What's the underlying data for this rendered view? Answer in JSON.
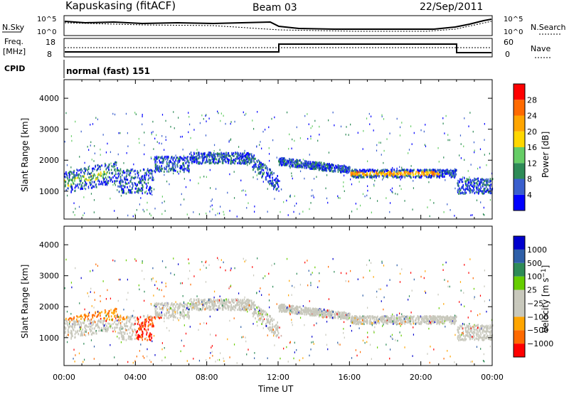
{
  "header": {
    "station": "Kapuskasing (fitACF)",
    "beam": "Beam 03",
    "date": "22/Sep/2011"
  },
  "noise_panel": {
    "left_label": "N.Sky",
    "right_label": "N.Search",
    "ticks_left": [
      "10^5",
      "10^0"
    ],
    "ticks_right": [
      "10^5",
      "10^0"
    ]
  },
  "freq_panel": {
    "left_label_1": "Freq.",
    "left_label_2": "[MHz]",
    "right_label": "Nave",
    "ticks_left": [
      "18",
      "8"
    ],
    "ticks_right": [
      "60",
      "0"
    ]
  },
  "cpid": {
    "label": "CPID",
    "value": "normal (fast) 151"
  },
  "colors": {
    "power_scale": [
      "#0000ff",
      "#3a5fcd",
      "#2e8b57",
      "#66cd66",
      "#ffd700",
      "#ffa500",
      "#ff6a00",
      "#ff0000"
    ],
    "velocity_scale": [
      "#0000cd",
      "#2e5fa8",
      "#2e8b57",
      "#66cd00",
      "#c8c8bc",
      "#c8c8bc",
      "#ffa500",
      "#ff6a00",
      "#ff0000"
    ]
  },
  "chart_data": [
    {
      "type": "heatmap",
      "title": "",
      "quantity": "Power",
      "xlabel": "",
      "ylabel": "Slant Range [km]",
      "yticks": [
        "1000",
        "2000",
        "3000",
        "4000"
      ],
      "ylim": [
        100,
        4600
      ],
      "xlim": [
        0,
        24
      ],
      "colorbar_label": "Power [dB]",
      "colorbar_ticks": [
        "4",
        "8",
        "12",
        "16",
        "20",
        "24",
        "28"
      ]
    },
    {
      "type": "heatmap",
      "title": "",
      "quantity": "Velocity",
      "xlabel": "Time UT",
      "ylabel": "Slant Range [km]",
      "yticks": [
        "1000",
        "2000",
        "3000",
        "4000"
      ],
      "ylim": [
        100,
        4600
      ],
      "xlim": [
        0,
        24
      ],
      "xticks": [
        "00:00",
        "04:00",
        "08:00",
        "12:00",
        "16:00",
        "20:00",
        "00:00"
      ],
      "colorbar_label": "Velocity [m s^-1]",
      "colorbar_ticks": [
        "1000",
        "500",
        "100",
        "25",
        "−25",
        "−100",
        "−500",
        "−1000"
      ]
    }
  ]
}
